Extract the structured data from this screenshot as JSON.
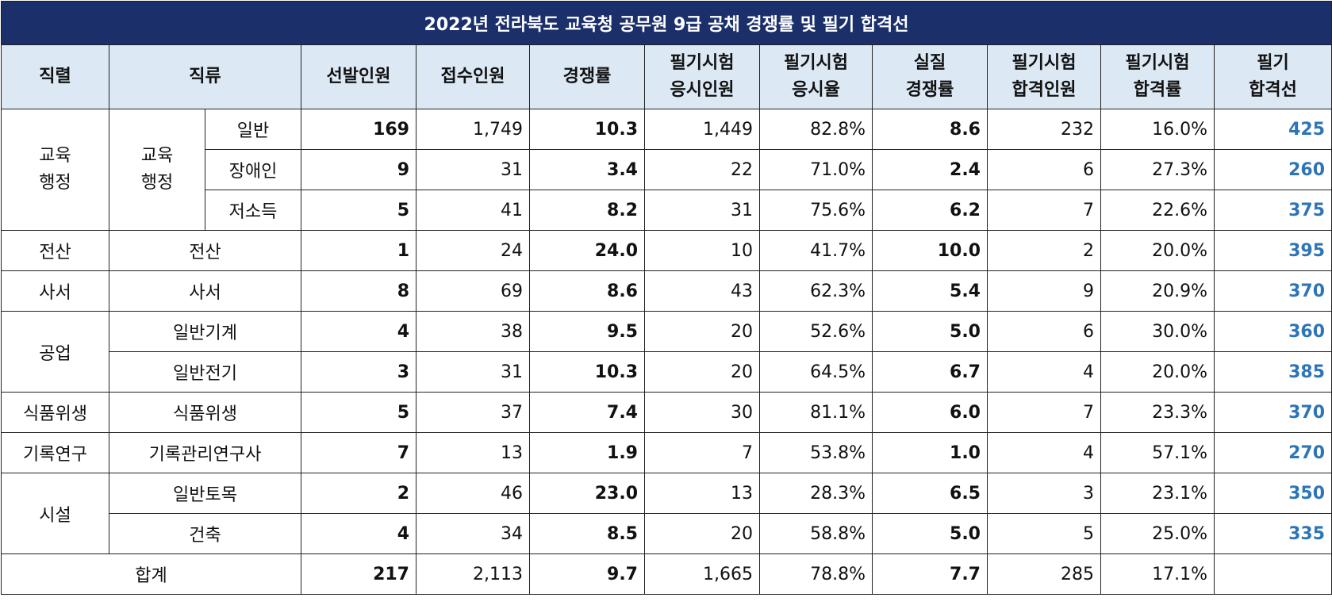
{
  "title": "2022년 전라북도 교육청 공무원 9급 공채 경쟁률 및 필기 합격선",
  "table": {
    "headers": [
      [
        "직렬"
      ],
      [
        "직류"
      ],
      [
        "선발인원"
      ],
      [
        "접수인원"
      ],
      [
        "경쟁률"
      ],
      [
        "필기시험",
        "응시인원"
      ],
      [
        "필기시험",
        "응시율"
      ],
      [
        "실질",
        "경쟁률"
      ],
      [
        "필기시험",
        "합격인원"
      ],
      [
        "필기시험",
        "합격률"
      ],
      [
        "필기",
        "합격선"
      ]
    ],
    "groups": [
      {
        "series": "교육행정",
        "type": "교육행정",
        "rows": [
          {
            "sub": "일반",
            "cells": [
              "169",
              "1,749",
              "10.3",
              "1,449",
              "82.8%",
              "8.6",
              "232",
              "16.0%",
              "425"
            ]
          },
          {
            "sub": "장애인",
            "cells": [
              "9",
              "31",
              "3.4",
              "22",
              "71.0%",
              "2.4",
              "6",
              "27.3%",
              "260"
            ]
          },
          {
            "sub": "저소득",
            "cells": [
              "5",
              "41",
              "8.2",
              "31",
              "75.6%",
              "6.2",
              "7",
              "22.6%",
              "375"
            ]
          }
        ]
      },
      {
        "series": "전산",
        "rows": [
          {
            "type": "전산",
            "cells": [
              "1",
              "24",
              "24.0",
              "10",
              "41.7%",
              "10.0",
              "2",
              "20.0%",
              "395"
            ]
          }
        ]
      },
      {
        "series": "사서",
        "rows": [
          {
            "type": "사서",
            "cells": [
              "8",
              "69",
              "8.6",
              "43",
              "62.3%",
              "5.4",
              "9",
              "20.9%",
              "370"
            ]
          }
        ]
      },
      {
        "series": "공업",
        "rows": [
          {
            "type": "일반기계",
            "cells": [
              "4",
              "38",
              "9.5",
              "20",
              "52.6%",
              "5.0",
              "6",
              "30.0%",
              "360"
            ]
          },
          {
            "type": "일반전기",
            "cells": [
              "3",
              "31",
              "10.3",
              "20",
              "64.5%",
              "6.7",
              "4",
              "20.0%",
              "385"
            ]
          }
        ]
      },
      {
        "series": "식품위생",
        "rows": [
          {
            "type": "식품위생",
            "cells": [
              "5",
              "37",
              "7.4",
              "30",
              "81.1%",
              "6.0",
              "7",
              "23.3%",
              "370"
            ]
          }
        ]
      },
      {
        "series": "기록연구",
        "rows": [
          {
            "type": "기록관리연구사",
            "cells": [
              "7",
              "13",
              "1.9",
              "7",
              "53.8%",
              "1.0",
              "4",
              "57.1%",
              "270"
            ]
          }
        ]
      },
      {
        "series": "시설",
        "rows": [
          {
            "type": "일반토목",
            "cells": [
              "2",
              "46",
              "23.0",
              "13",
              "28.3%",
              "6.5",
              "3",
              "23.1%",
              "350"
            ]
          },
          {
            "type": "건축",
            "cells": [
              "4",
              "34",
              "8.5",
              "20",
              "58.8%",
              "5.0",
              "5",
              "25.0%",
              "335"
            ]
          }
        ]
      }
    ],
    "total": {
      "label": "합계",
      "cells": [
        "217",
        "2,113",
        "9.7",
        "1,665",
        "78.8%",
        "7.7",
        "285",
        "17.1%"
      ]
    }
  }
}
